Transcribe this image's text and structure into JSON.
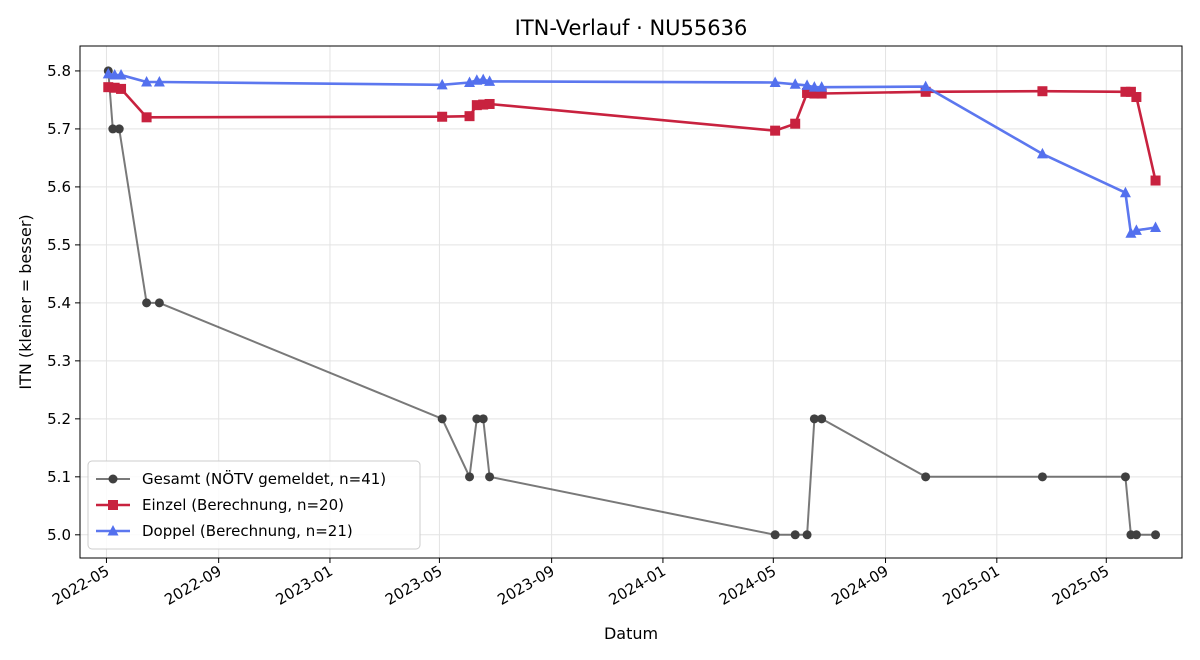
{
  "chart_data": {
    "type": "line",
    "title": "ITN-Verlauf · NU55636",
    "xlabel": "Datum",
    "ylabel": "ITN  (kleiner = besser)",
    "x_type": "date",
    "xlim": [
      "2022-04-02",
      "2025-07-23"
    ],
    "ylim": [
      4.96,
      5.843
    ],
    "x_ticks": [
      "2022-05-01",
      "2022-09-01",
      "2023-01-01",
      "2023-05-01",
      "2023-09-01",
      "2024-01-01",
      "2024-05-01",
      "2024-09-01",
      "2025-01-01",
      "2025-05-01"
    ],
    "x_tick_labels": [
      "2022-05",
      "2022-09",
      "2023-01",
      "2023-05",
      "2023-09",
      "2024-01",
      "2024-05",
      "2024-09",
      "2025-01",
      "2025-05"
    ],
    "y_ticks": [
      5.0,
      5.1,
      5.2,
      5.3,
      5.4,
      5.5,
      5.6,
      5.7,
      5.8
    ],
    "y_tick_labels": [
      "5.0",
      "5.1",
      "5.2",
      "5.3",
      "5.4",
      "5.5",
      "5.6",
      "5.7",
      "5.8"
    ],
    "grid": true,
    "legend_position": "lower-left",
    "series": [
      {
        "name": "Gesamt (NÖTV gemeldet, n=41)",
        "color": "#404040",
        "marker": "circle",
        "x": [
          "2022-05-03",
          "2022-05-08",
          "2022-05-15",
          "2022-06-14",
          "2022-06-28",
          "2023-05-04",
          "2023-06-03",
          "2023-06-11",
          "2023-06-18",
          "2023-06-25",
          "2024-05-03",
          "2024-05-25",
          "2024-06-07",
          "2024-06-15",
          "2024-06-23",
          "2024-10-15",
          "2025-02-20",
          "2025-05-22",
          "2025-05-28",
          "2025-06-03",
          "2025-06-24"
        ],
        "y": [
          5.8,
          5.7,
          5.7,
          5.4,
          5.4,
          5.2,
          5.1,
          5.2,
          5.2,
          5.1,
          5.0,
          5.0,
          5.0,
          5.2,
          5.2,
          5.1,
          5.1,
          5.1,
          5.0,
          5.0,
          5.0
        ]
      },
      {
        "name": "Einzel (Berechnung, n=20)",
        "color": "#c8223f",
        "marker": "square",
        "x": [
          "2022-05-03",
          "2022-05-10",
          "2022-05-17",
          "2022-06-14",
          "2023-05-04",
          "2023-06-03",
          "2023-06-11",
          "2023-06-18",
          "2023-06-25",
          "2024-05-03",
          "2024-05-25",
          "2024-06-07",
          "2024-06-15",
          "2024-06-23",
          "2024-10-15",
          "2025-02-20",
          "2025-05-22",
          "2025-05-28",
          "2025-06-03",
          "2025-06-24"
        ],
        "y": [
          5.772,
          5.771,
          5.769,
          5.72,
          5.721,
          5.722,
          5.741,
          5.742,
          5.743,
          5.697,
          5.709,
          5.762,
          5.761,
          5.761,
          5.764,
          5.765,
          5.764,
          5.764,
          5.755,
          5.611
        ]
      },
      {
        "name": "Doppel (Berechnung, n=21)",
        "color": "#5370ee",
        "marker": "triangle",
        "x": [
          "2022-05-03",
          "2022-05-10",
          "2022-05-17",
          "2022-06-14",
          "2022-06-28",
          "2023-05-04",
          "2023-06-03",
          "2023-06-11",
          "2023-06-18",
          "2023-06-25",
          "2024-05-03",
          "2024-05-25",
          "2024-06-07",
          "2024-06-15",
          "2024-06-23",
          "2024-10-15",
          "2025-02-20",
          "2025-05-22",
          "2025-05-28",
          "2025-06-03",
          "2025-06-24"
        ],
        "y": [
          5.795,
          5.793,
          5.793,
          5.781,
          5.781,
          5.776,
          5.78,
          5.784,
          5.785,
          5.782,
          5.78,
          5.777,
          5.775,
          5.772,
          5.772,
          5.773,
          5.657,
          5.59,
          5.52,
          5.525,
          5.53
        ]
      }
    ]
  }
}
